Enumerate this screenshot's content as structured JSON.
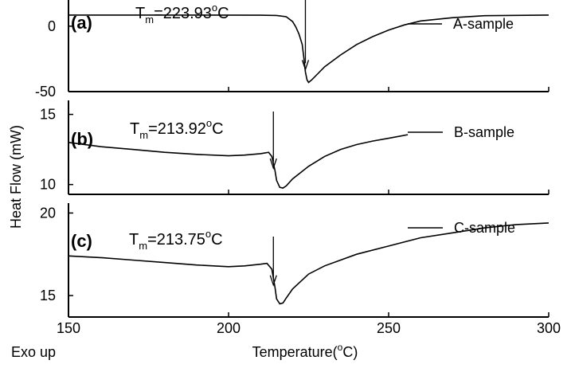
{
  "chart_data": [
    {
      "type": "line",
      "panel_label": "(a)",
      "annotation": {
        "prefix": "T",
        "sub": "m",
        "value": "=223.93",
        "deg": "o",
        "unit": "C",
        "arrow_x": 224
      },
      "legend": "A-sample",
      "ylim": [
        -50,
        20
      ],
      "yticks": [
        0,
        -50
      ],
      "ytick_labels": [
        "0",
        "-50"
      ],
      "series": [
        {
          "name": "A-sample",
          "x": [
            150,
            180,
            210,
            215,
            218,
            220,
            221,
            222,
            223,
            223.5,
            224,
            224.5,
            225,
            226,
            228,
            230,
            235,
            240,
            245,
            250,
            255,
            260,
            270,
            280,
            300
          ],
          "y": [
            8.5,
            8.5,
            8.4,
            8.2,
            7.2,
            3.5,
            -0.5,
            -6,
            -14,
            -24,
            -35,
            -41,
            -43,
            -41,
            -36,
            -31,
            -22,
            -14,
            -8,
            -3,
            1,
            4,
            6.5,
            8,
            8.5
          ]
        }
      ]
    },
    {
      "type": "line",
      "panel_label": "(b)",
      "annotation": {
        "prefix": "T",
        "sub": "m",
        "value": "=213.92",
        "deg": "o",
        "unit": "C",
        "arrow_x": 214
      },
      "legend": "B-sample",
      "ylim": [
        9.3,
        16
      ],
      "yticks": [
        15,
        10
      ],
      "ytick_labels": [
        "15",
        "10"
      ],
      "series": [
        {
          "name": "B-sample",
          "x": [
            150,
            160,
            170,
            180,
            190,
            200,
            205,
            210,
            212.5,
            213.5,
            214.5,
            215,
            216,
            217,
            218,
            220,
            225,
            230,
            235,
            240,
            245,
            250,
            256
          ],
          "y": [
            13.0,
            12.7,
            12.5,
            12.3,
            12.15,
            12.05,
            12.1,
            12.2,
            12.3,
            12.0,
            11.0,
            10.3,
            9.8,
            9.75,
            9.9,
            10.4,
            11.3,
            12.0,
            12.5,
            12.85,
            13.1,
            13.3,
            13.55
          ]
        }
      ]
    },
    {
      "type": "line",
      "panel_label": "(c)",
      "annotation": {
        "prefix": "T",
        "sub": "m",
        "value": "=213.75",
        "deg": "o",
        "unit": "C",
        "arrow_x": 214
      },
      "legend": "C-sample",
      "ylim": [
        13.7,
        20.6
      ],
      "yticks": [
        20,
        15
      ],
      "ytick_labels": [
        "20",
        "15"
      ],
      "series": [
        {
          "name": "C-sample",
          "x": [
            150,
            160,
            170,
            180,
            190,
            200,
            205,
            210,
            212,
            213.5,
            214.5,
            215,
            216,
            217,
            218,
            220,
            225,
            230,
            240,
            250,
            260,
            270,
            280,
            290,
            300
          ],
          "y": [
            17.4,
            17.3,
            17.15,
            17.0,
            16.85,
            16.75,
            16.8,
            16.9,
            16.95,
            16.6,
            15.5,
            14.8,
            14.5,
            14.55,
            14.85,
            15.4,
            16.3,
            16.8,
            17.5,
            18.0,
            18.5,
            18.8,
            19.1,
            19.3,
            19.4
          ]
        }
      ]
    }
  ],
  "x_axis": {
    "xlim": [
      150,
      300
    ],
    "ticks": [
      150,
      200,
      250,
      300
    ],
    "tick_labels": [
      "150",
      "200",
      "250",
      "300"
    ],
    "title": {
      "prefix": "Temperature(",
      "deg": "o",
      "unit": "C)"
    }
  },
  "ylabel": "Heat Flow (mW)",
  "footnote": "Exo up"
}
